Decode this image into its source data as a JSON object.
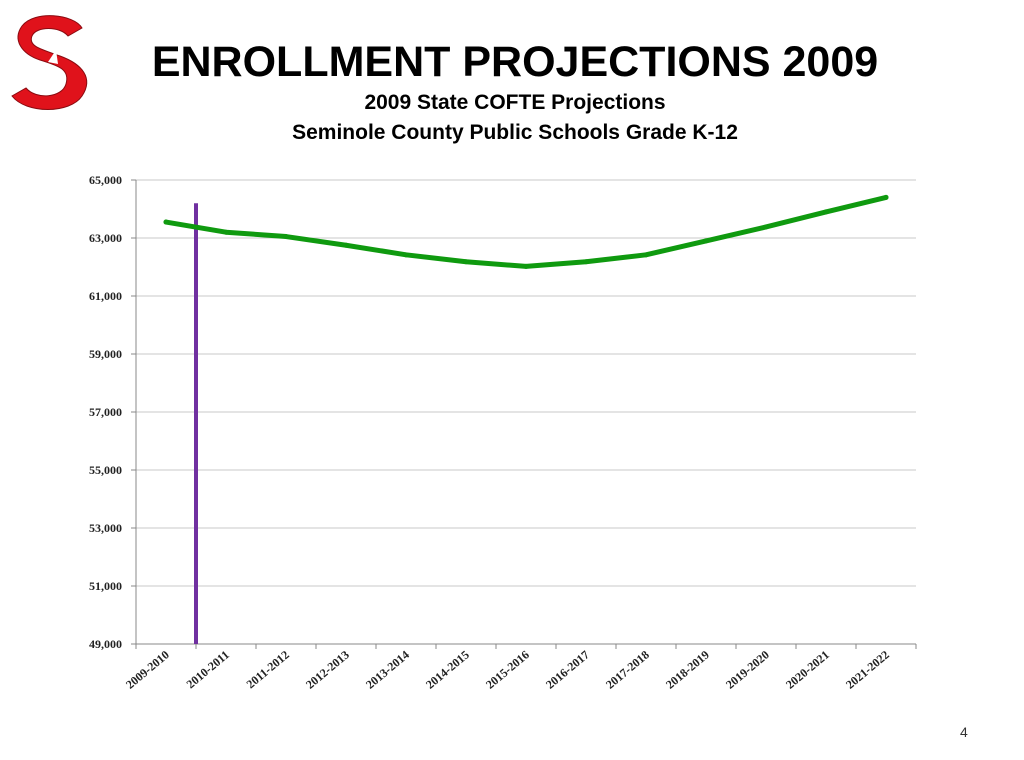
{
  "slide": {
    "title": "ENROLLMENT PROJECTIONS 2009",
    "subtitle_line1": "2009 State  COFTE Projections",
    "subtitle_line2": "Seminole County Public Schools Grade K-12",
    "page_number": "4",
    "logo": {
      "icon": "seminole-s-logo-icon",
      "color": "#e0121b"
    }
  },
  "chart_data": {
    "type": "line",
    "title": "",
    "xlabel": "",
    "ylabel": "",
    "categories": [
      "2009-2010",
      "2010-2011",
      "2011-2012",
      "2012-2013",
      "2013-2014",
      "2014-2015",
      "2015-2016",
      "2016-2017",
      "2017-2018",
      "2018-2019",
      "2019-2020",
      "2020-2021",
      "2021-2022"
    ],
    "series": [
      {
        "values": [
          63550,
          63200,
          63050,
          62750,
          62420,
          62180,
          62020,
          62180,
          62420,
          62900,
          63380,
          63900,
          64400
        ],
        "color": "#0f9a0f"
      }
    ],
    "ylim": [
      49000,
      65000
    ],
    "yticks": [
      49000,
      51000,
      53000,
      55000,
      57000,
      59000,
      61000,
      63000,
      65000
    ],
    "ytick_labels": [
      "49,000",
      "51,000",
      "53,000",
      "55,000",
      "57,000",
      "59,000",
      "61,000",
      "63,000",
      "65,000"
    ],
    "grid": true,
    "marker_line": {
      "x": "2010-2011",
      "color": "#7030a0",
      "y_top": 64200
    }
  }
}
